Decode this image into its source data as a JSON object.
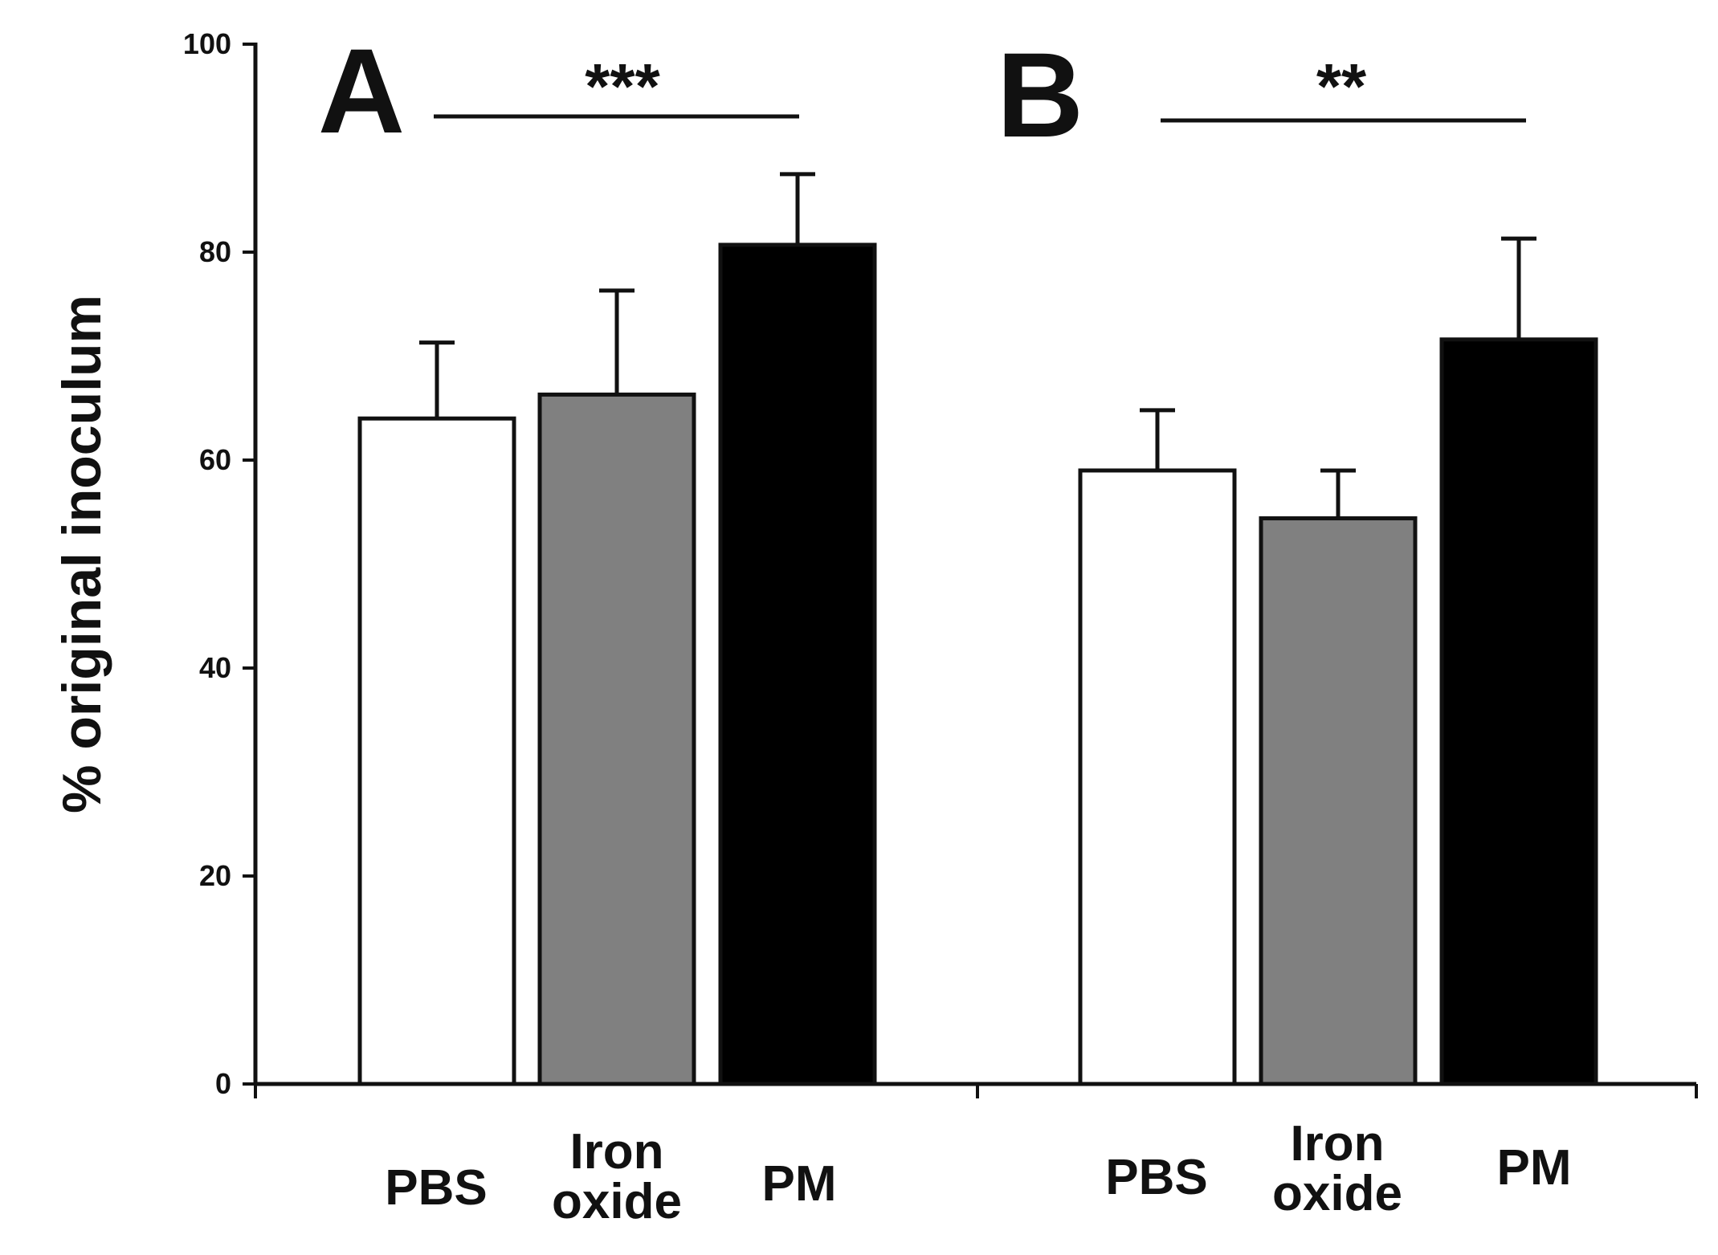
{
  "chart_data": {
    "type": "bar",
    "ylabel": "% original inoculum",
    "xlabel": "",
    "ylim": [
      0,
      100
    ],
    "yticks": [
      0,
      20,
      40,
      60,
      80,
      100
    ],
    "categories": [
      "PBS",
      "Iron oxide",
      "PM"
    ],
    "bar_colors": [
      "#ffffff",
      "#808080",
      "#000000"
    ],
    "panels": [
      {
        "label": "A",
        "significance": "***",
        "values": [
          64,
          66.3,
          80.7
        ],
        "errors": [
          7.3,
          10,
          6.8
        ]
      },
      {
        "label": "B",
        "significance": "**",
        "values": [
          59,
          54.4,
          71.6
        ],
        "errors": [
          5.8,
          4.6,
          9.7
        ]
      }
    ]
  }
}
